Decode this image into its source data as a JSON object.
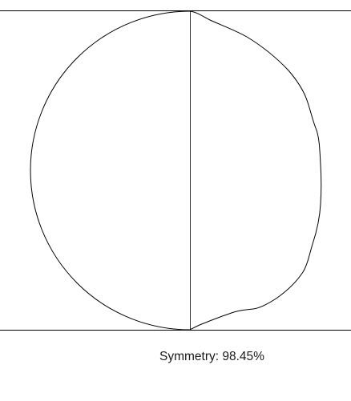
{
  "readout": {
    "label": "Symmetry:",
    "value": "98.45%"
  },
  "colors": {
    "stroke": "#000000",
    "background": "#ffffff",
    "text": "#1a1a1a"
  }
}
